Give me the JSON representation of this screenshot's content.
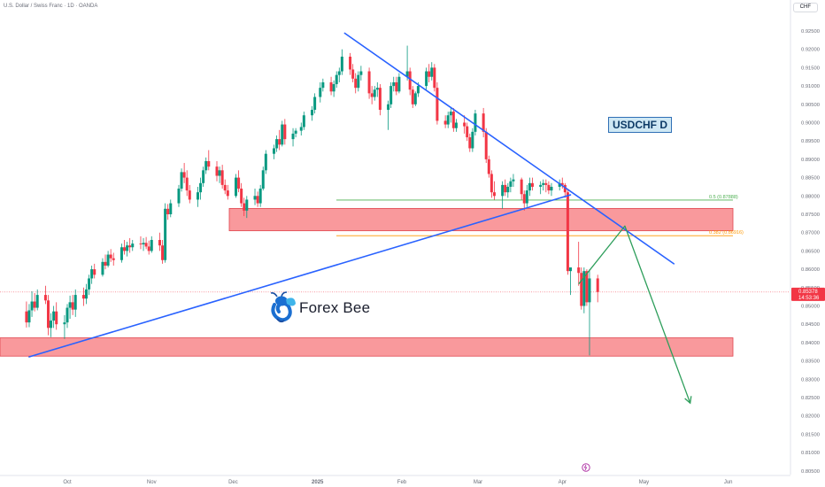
{
  "header": {
    "title": "U.S. Dollar / Swiss Franc · 1D · OANDA",
    "currency": "CHF"
  },
  "annotation": {
    "pair_label": "USDCHF D",
    "brand": "Forex Bee"
  },
  "colors": {
    "up": "#089981",
    "down": "#f23645",
    "trendline": "#2962ff",
    "zone": "#f77c80",
    "projection": "#2e9e5b",
    "fib_05": "#4caf50",
    "fib_0382": "#ff9800",
    "price_line": "#f23645"
  },
  "chart_data": {
    "type": "candlestick",
    "title": "U.S. Dollar / Swiss Franc · 1D · OANDA",
    "x_ticks": [
      "Oct",
      "Nov",
      "Dec",
      "2025",
      "Feb",
      "Mar",
      "Apr",
      "May",
      "Jun"
    ],
    "y_ticks": [
      "0.92500",
      "0.92000",
      "0.91500",
      "0.91000",
      "0.90500",
      "0.90000",
      "0.89500",
      "0.89000",
      "0.88500",
      "0.88000",
      "0.87500",
      "0.87000",
      "0.86500",
      "0.86000",
      "0.85500",
      "0.85000",
      "0.84500",
      "0.84000",
      "0.83500",
      "0.83000",
      "0.82500",
      "0.82000",
      "0.81500",
      "0.81000",
      "0.80500"
    ],
    "ylim": [
      0.8035,
      0.9265
    ],
    "current_price": {
      "value": "0.85378",
      "countdown": "14:53:36"
    },
    "fib_levels": [
      {
        "label": "0.5 (0.87888)",
        "value": 0.87888
      },
      {
        "label": "0.382 (0.86916)",
        "value": 0.86916
      }
    ],
    "zones": [
      {
        "from": 0.8705,
        "to": 0.8766
      },
      {
        "from": 0.8363,
        "to": 0.8413
      }
    ],
    "trendlines": [
      {
        "name": "support",
        "points": [
          [
            "2024-09-17",
            0.8361
          ],
          [
            "2025-04-04",
            0.8803
          ]
        ]
      },
      {
        "name": "resistance",
        "points": [
          [
            "2025-01-11",
            0.9244
          ],
          [
            "2025-05-12",
            0.8615
          ]
        ]
      }
    ],
    "projection": [
      [
        "2025-04-07",
        0.856
      ],
      [
        "2025-04-24",
        0.8718
      ],
      [
        "2025-05-18",
        0.8235
      ]
    ],
    "ohlc_columns": [
      "date",
      "open",
      "high",
      "low",
      "close"
    ],
    "ohlc": [
      [
        "2024-09-16",
        0.8485,
        0.8512,
        0.8441,
        0.8455
      ],
      [
        "2024-09-17",
        0.8455,
        0.8505,
        0.8442,
        0.8488
      ],
      [
        "2024-09-18",
        0.8488,
        0.854,
        0.847,
        0.8512
      ],
      [
        "2024-09-19",
        0.8512,
        0.8535,
        0.8485,
        0.8495
      ],
      [
        "2024-09-20",
        0.8495,
        0.8545,
        0.8488,
        0.853
      ],
      [
        "2024-09-23",
        0.853,
        0.8555,
        0.8505,
        0.8515
      ],
      [
        "2024-09-24",
        0.8515,
        0.853,
        0.842,
        0.844
      ],
      [
        "2024-09-25",
        0.844,
        0.848,
        0.8415,
        0.846
      ],
      [
        "2024-09-26",
        0.846,
        0.85,
        0.844,
        0.8485
      ],
      [
        "2024-09-27",
        0.8485,
        0.851,
        0.8435,
        0.845
      ],
      [
        "2024-09-30",
        0.845,
        0.8475,
        0.841,
        0.8455
      ],
      [
        "2024-10-01",
        0.8455,
        0.8505,
        0.844,
        0.8495
      ],
      [
        "2024-10-02",
        0.8495,
        0.8528,
        0.8465,
        0.851
      ],
      [
        "2024-10-03",
        0.851,
        0.853,
        0.8475,
        0.849
      ],
      [
        "2024-10-04",
        0.849,
        0.8545,
        0.847,
        0.853
      ],
      [
        "2024-10-07",
        0.853,
        0.855,
        0.85,
        0.852
      ],
      [
        "2024-10-08",
        0.852,
        0.856,
        0.8505,
        0.8545
      ],
      [
        "2024-10-09",
        0.8545,
        0.8585,
        0.853,
        0.8575
      ],
      [
        "2024-10-10",
        0.8575,
        0.861,
        0.856,
        0.86
      ],
      [
        "2024-10-11",
        0.86,
        0.8615,
        0.8575,
        0.8585
      ],
      [
        "2024-10-14",
        0.8585,
        0.863,
        0.858,
        0.862
      ],
      [
        "2024-10-15",
        0.862,
        0.864,
        0.86,
        0.861
      ],
      [
        "2024-10-16",
        0.861,
        0.865,
        0.8605,
        0.864
      ],
      [
        "2024-10-17",
        0.864,
        0.8655,
        0.862,
        0.863
      ],
      [
        "2024-10-18",
        0.863,
        0.8645,
        0.861,
        0.8625
      ],
      [
        "2024-10-21",
        0.8625,
        0.867,
        0.8618,
        0.866
      ],
      [
        "2024-10-22",
        0.866,
        0.868,
        0.864,
        0.865
      ],
      [
        "2024-10-23",
        0.865,
        0.8675,
        0.8635,
        0.8665
      ],
      [
        "2024-10-24",
        0.8665,
        0.8685,
        0.8645,
        0.866
      ],
      [
        "2024-10-25",
        0.866,
        0.868,
        0.865,
        0.867
      ],
      [
        "2024-10-28",
        0.867,
        0.869,
        0.8655,
        0.8668
      ],
      [
        "2024-10-29",
        0.8668,
        0.8685,
        0.865,
        0.8672
      ],
      [
        "2024-10-30",
        0.8672,
        0.8688,
        0.8655,
        0.8662
      ],
      [
        "2024-10-31",
        0.8662,
        0.8678,
        0.864,
        0.865
      ],
      [
        "2024-11-01",
        0.865,
        0.869,
        0.8645,
        0.868
      ],
      [
        "2024-11-04",
        0.868,
        0.87,
        0.865,
        0.8665
      ],
      [
        "2024-11-05",
        0.8665,
        0.868,
        0.8615,
        0.8625
      ],
      [
        "2024-11-06",
        0.8625,
        0.878,
        0.8618,
        0.8765
      ],
      [
        "2024-11-07",
        0.8765,
        0.8778,
        0.8735,
        0.875
      ],
      [
        "2024-11-08",
        0.875,
        0.879,
        0.8742,
        0.878
      ],
      [
        "2024-11-11",
        0.878,
        0.883,
        0.877,
        0.882
      ],
      [
        "2024-11-12",
        0.882,
        0.8875,
        0.8812,
        0.8865
      ],
      [
        "2024-11-13",
        0.8865,
        0.889,
        0.8835,
        0.885
      ],
      [
        "2024-11-14",
        0.885,
        0.887,
        0.88,
        0.8815
      ],
      [
        "2024-11-15",
        0.8815,
        0.883,
        0.878,
        0.879
      ],
      [
        "2024-11-18",
        0.879,
        0.8825,
        0.877,
        0.881
      ],
      [
        "2024-11-19",
        0.881,
        0.885,
        0.879,
        0.8835
      ],
      [
        "2024-11-20",
        0.8835,
        0.888,
        0.8825,
        0.887
      ],
      [
        "2024-11-21",
        0.887,
        0.8905,
        0.886,
        0.8895
      ],
      [
        "2024-11-22",
        0.8895,
        0.8925,
        0.887,
        0.888
      ],
      [
        "2024-11-25",
        0.888,
        0.8895,
        0.884,
        0.8855
      ],
      [
        "2024-11-26",
        0.8855,
        0.888,
        0.8835,
        0.887
      ],
      [
        "2024-11-27",
        0.887,
        0.8885,
        0.882,
        0.883
      ],
      [
        "2024-11-28",
        0.883,
        0.8845,
        0.8805,
        0.8815
      ],
      [
        "2024-11-29",
        0.8815,
        0.883,
        0.879,
        0.88
      ],
      [
        "2024-12-02",
        0.88,
        0.886,
        0.8795,
        0.885
      ],
      [
        "2024-12-03",
        0.885,
        0.887,
        0.881,
        0.882
      ],
      [
        "2024-12-04",
        0.882,
        0.8835,
        0.877,
        0.878
      ],
      [
        "2024-12-05",
        0.878,
        0.8795,
        0.8745,
        0.876
      ],
      [
        "2024-12-06",
        0.876,
        0.88,
        0.874,
        0.879
      ],
      [
        "2024-12-09",
        0.879,
        0.882,
        0.8775,
        0.88
      ],
      [
        "2024-12-10",
        0.88,
        0.8812,
        0.877,
        0.878
      ],
      [
        "2024-12-11",
        0.878,
        0.883,
        0.877,
        0.882
      ],
      [
        "2024-12-12",
        0.882,
        0.888,
        0.8815,
        0.887
      ],
      [
        "2024-12-13",
        0.887,
        0.8925,
        0.886,
        0.8915
      ],
      [
        "2024-12-16",
        0.8915,
        0.894,
        0.89,
        0.893
      ],
      [
        "2024-12-17",
        0.893,
        0.8965,
        0.892,
        0.8955
      ],
      [
        "2024-12-18",
        0.8955,
        0.898,
        0.8925,
        0.894
      ],
      [
        "2024-12-19",
        0.894,
        0.9005,
        0.8935,
        0.8995
      ],
      [
        "2024-12-20",
        0.8995,
        0.901,
        0.894,
        0.8955
      ],
      [
        "2024-12-23",
        0.8955,
        0.8985,
        0.8935,
        0.897
      ],
      [
        "2024-12-24",
        0.897,
        0.8985,
        0.896,
        0.8978
      ],
      [
        "2024-12-26",
        0.8978,
        0.9,
        0.8965,
        0.8988
      ],
      [
        "2024-12-27",
        0.8988,
        0.903,
        0.898,
        0.902
      ],
      [
        "2024-12-30",
        0.902,
        0.9045,
        0.9005,
        0.9035
      ],
      [
        "2024-12-31",
        0.9035,
        0.908,
        0.9025,
        0.907
      ],
      [
        "2025-01-02",
        0.907,
        0.911,
        0.9055,
        0.9095
      ],
      [
        "2025-01-03",
        0.9095,
        0.912,
        0.9085,
        0.911
      ],
      [
        "2025-01-06",
        0.911,
        0.9125,
        0.9075,
        0.9085
      ],
      [
        "2025-01-07",
        0.9085,
        0.9115,
        0.907,
        0.9105
      ],
      [
        "2025-01-08",
        0.9105,
        0.914,
        0.9095,
        0.913
      ],
      [
        "2025-01-09",
        0.913,
        0.915,
        0.911,
        0.914
      ],
      [
        "2025-01-10",
        0.914,
        0.92,
        0.913,
        0.918
      ],
      [
        "2025-01-13",
        0.918,
        0.919,
        0.913,
        0.9145
      ],
      [
        "2025-01-14",
        0.9145,
        0.916,
        0.911,
        0.912
      ],
      [
        "2025-01-15",
        0.912,
        0.9135,
        0.908,
        0.9095
      ],
      [
        "2025-01-16",
        0.9095,
        0.914,
        0.9085,
        0.913
      ],
      [
        "2025-01-17",
        0.913,
        0.9155,
        0.9115,
        0.914
      ],
      [
        "2025-01-20",
        0.914,
        0.915,
        0.9065,
        0.908
      ],
      [
        "2025-01-21",
        0.908,
        0.91,
        0.905,
        0.907
      ],
      [
        "2025-01-22",
        0.907,
        0.91,
        0.906,
        0.909
      ],
      [
        "2025-01-23",
        0.909,
        0.911,
        0.907,
        0.9095
      ],
      [
        "2025-01-24",
        0.9095,
        0.9105,
        0.902,
        0.9035
      ],
      [
        "2025-01-27",
        0.9035,
        0.906,
        0.898,
        0.905
      ],
      [
        "2025-01-28",
        0.905,
        0.911,
        0.904,
        0.91
      ],
      [
        "2025-01-29",
        0.91,
        0.9125,
        0.9085,
        0.911
      ],
      [
        "2025-01-30",
        0.911,
        0.9125,
        0.9075,
        0.9085
      ],
      [
        "2025-01-31",
        0.9085,
        0.9135,
        0.908,
        0.9125
      ],
      [
        "2025-02-03",
        0.9125,
        0.921,
        0.9115,
        0.914
      ],
      [
        "2025-02-04",
        0.914,
        0.915,
        0.9075,
        0.909
      ],
      [
        "2025-02-05",
        0.909,
        0.91,
        0.904,
        0.905
      ],
      [
        "2025-02-06",
        0.905,
        0.9085,
        0.9045,
        0.908
      ],
      [
        "2025-02-07",
        0.908,
        0.911,
        0.907,
        0.91
      ],
      [
        "2025-02-10",
        0.91,
        0.915,
        0.909,
        0.914
      ],
      [
        "2025-02-11",
        0.914,
        0.916,
        0.911,
        0.9125
      ],
      [
        "2025-02-12",
        0.9125,
        0.9165,
        0.9115,
        0.915
      ],
      [
        "2025-02-13",
        0.915,
        0.916,
        0.9085,
        0.9095
      ],
      [
        "2025-02-14",
        0.9095,
        0.911,
        0.8995,
        0.9005
      ],
      [
        "2025-02-17",
        0.9005,
        0.902,
        0.8985,
        0.8995
      ],
      [
        "2025-02-18",
        0.8995,
        0.903,
        0.8985,
        0.902
      ],
      [
        "2025-02-19",
        0.902,
        0.904,
        0.9,
        0.903
      ],
      [
        "2025-02-20",
        0.903,
        0.904,
        0.8975,
        0.8985
      ],
      [
        "2025-02-21",
        0.8985,
        0.901,
        0.8975,
        0.9
      ],
      [
        "2025-02-24",
        0.9,
        0.902,
        0.897,
        0.899
      ],
      [
        "2025-02-25",
        0.899,
        0.9,
        0.895,
        0.896
      ],
      [
        "2025-02-26",
        0.896,
        0.897,
        0.892,
        0.893
      ],
      [
        "2025-02-27",
        0.893,
        0.8985,
        0.892,
        0.8975
      ],
      [
        "2025-02-28",
        0.8975,
        0.9035,
        0.8965,
        0.9025
      ],
      [
        "2025-03-03",
        0.9025,
        0.904,
        0.896,
        0.8975
      ],
      [
        "2025-03-04",
        0.8975,
        0.8985,
        0.889,
        0.89
      ],
      [
        "2025-03-05",
        0.89,
        0.891,
        0.885,
        0.886
      ],
      [
        "2025-03-06",
        0.886,
        0.887,
        0.8795,
        0.881
      ],
      [
        "2025-03-07",
        0.881,
        0.884,
        0.879,
        0.88
      ],
      [
        "2025-03-10",
        0.88,
        0.884,
        0.8765,
        0.883
      ],
      [
        "2025-03-11",
        0.883,
        0.8845,
        0.88,
        0.881
      ],
      [
        "2025-03-12",
        0.881,
        0.8835,
        0.8795,
        0.8825
      ],
      [
        "2025-03-13",
        0.8825,
        0.885,
        0.881,
        0.884
      ],
      [
        "2025-03-14",
        0.884,
        0.886,
        0.8825,
        0.8845
      ],
      [
        "2025-03-17",
        0.8845,
        0.885,
        0.879,
        0.8805
      ],
      [
        "2025-03-18",
        0.8805,
        0.8815,
        0.876,
        0.878
      ],
      [
        "2025-03-19",
        0.878,
        0.883,
        0.877,
        0.8815
      ],
      [
        "2025-03-20",
        0.8815,
        0.885,
        0.88,
        0.8835
      ],
      [
        "2025-03-21",
        0.8835,
        0.885,
        0.8815,
        0.8825
      ],
      [
        "2025-03-24",
        0.8825,
        0.884,
        0.8805,
        0.883
      ],
      [
        "2025-03-25",
        0.883,
        0.8845,
        0.8815,
        0.8835
      ],
      [
        "2025-03-26",
        0.8835,
        0.8845,
        0.881,
        0.883
      ],
      [
        "2025-03-27",
        0.883,
        0.884,
        0.8805,
        0.8815
      ],
      [
        "2025-03-28",
        0.8815,
        0.8835,
        0.88,
        0.8825
      ],
      [
        "2025-03-31",
        0.8825,
        0.8845,
        0.8815,
        0.8835
      ],
      [
        "2025-04-01",
        0.8835,
        0.885,
        0.882,
        0.883
      ],
      [
        "2025-04-02",
        0.883,
        0.8835,
        0.8795,
        0.881
      ],
      [
        "2025-04-03",
        0.881,
        0.882,
        0.8585,
        0.8595
      ],
      [
        "2025-04-04",
        0.8595,
        0.8605,
        0.853,
        0.8605
      ],
      [
        "2025-04-07",
        0.8605,
        0.8675,
        0.8555,
        0.859
      ],
      [
        "2025-04-08",
        0.859,
        0.8605,
        0.849,
        0.85
      ],
      [
        "2025-04-09",
        0.85,
        0.8605,
        0.848,
        0.8595
      ],
      [
        "2025-04-10",
        0.8595,
        0.86,
        0.85,
        0.851
      ],
      [
        "2025-04-11",
        0.851,
        0.86,
        0.8365,
        0.8575
      ],
      [
        "2025-04-14",
        0.8575,
        0.8585,
        0.851,
        0.8538
      ]
    ]
  }
}
